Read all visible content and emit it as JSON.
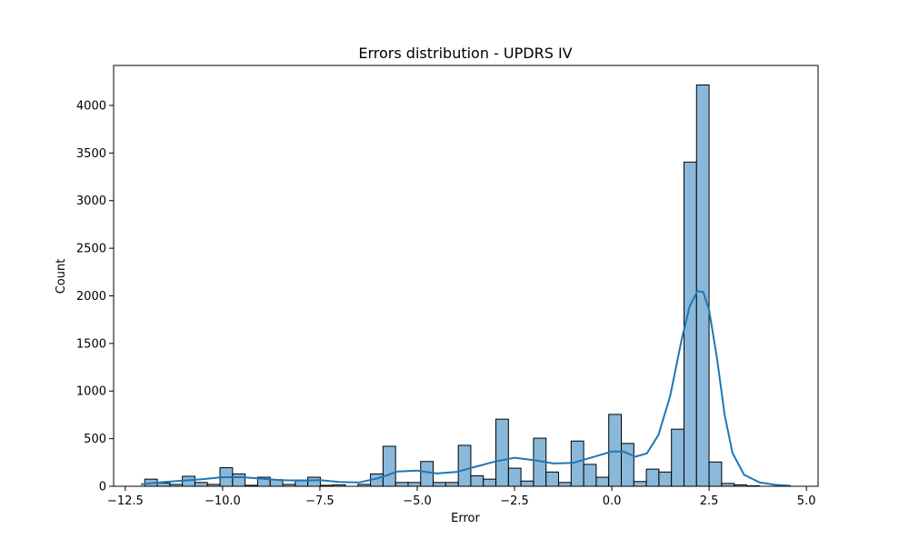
{
  "chart_data": {
    "type": "bar",
    "title": "Errors distribution - UPDRS IV",
    "xlabel": "Error",
    "ylabel": "Count",
    "xlim": [
      -12.8,
      5.3
    ],
    "ylim": [
      0,
      4420
    ],
    "xticks": [
      -12.5,
      -10.0,
      -7.5,
      -5.0,
      -2.5,
      0.0,
      2.5,
      5.0
    ],
    "xtick_labels": [
      "−12.5",
      "−10.0",
      "−7.5",
      "−5.0",
      "−2.5",
      "0.0",
      "2.5",
      "5.0"
    ],
    "yticks": [
      0,
      500,
      1000,
      1500,
      2000,
      2500,
      3000,
      3500,
      4000
    ],
    "ytick_labels": [
      "0",
      "500",
      "1000",
      "1500",
      "2000",
      "2500",
      "3000",
      "3500",
      "4000"
    ],
    "grid": false,
    "bar_fill": "#8ab8da",
    "bar_edge": "#000000",
    "kde_color": "#1f77b4",
    "bin_start": -12.0,
    "bin_width": 0.3222,
    "counts": [
      75,
      35,
      20,
      105,
      40,
      20,
      195,
      130,
      10,
      95,
      70,
      20,
      65,
      95,
      10,
      15,
      0,
      20,
      130,
      420,
      40,
      40,
      260,
      40,
      40,
      430,
      110,
      75,
      705,
      190,
      55,
      505,
      150,
      40,
      475,
      230,
      95,
      755,
      450,
      50,
      180,
      150,
      600,
      3405,
      4215,
      255,
      30,
      15,
      5
    ],
    "kde": {
      "x": [
        -12.1,
        -11.5,
        -11.0,
        -10.5,
        -10.0,
        -9.5,
        -9.0,
        -8.5,
        -8.0,
        -7.5,
        -7.0,
        -6.5,
        -6.0,
        -5.5,
        -5.0,
        -4.5,
        -4.0,
        -3.5,
        -3.0,
        -2.5,
        -2.0,
        -1.5,
        -1.0,
        -0.5,
        0.0,
        0.3,
        0.6,
        0.9,
        1.2,
        1.5,
        1.8,
        2.0,
        2.2,
        2.35,
        2.5,
        2.7,
        2.9,
        3.1,
        3.4,
        3.8,
        4.2,
        4.6
      ],
      "y": [
        20,
        45,
        60,
        75,
        95,
        95,
        80,
        65,
        60,
        65,
        45,
        40,
        85,
        155,
        165,
        135,
        150,
        205,
        260,
        300,
        275,
        240,
        245,
        305,
        365,
        365,
        310,
        345,
        540,
        950,
        1550,
        1890,
        2050,
        2040,
        1850,
        1350,
        750,
        350,
        120,
        40,
        15,
        5
      ]
    }
  }
}
